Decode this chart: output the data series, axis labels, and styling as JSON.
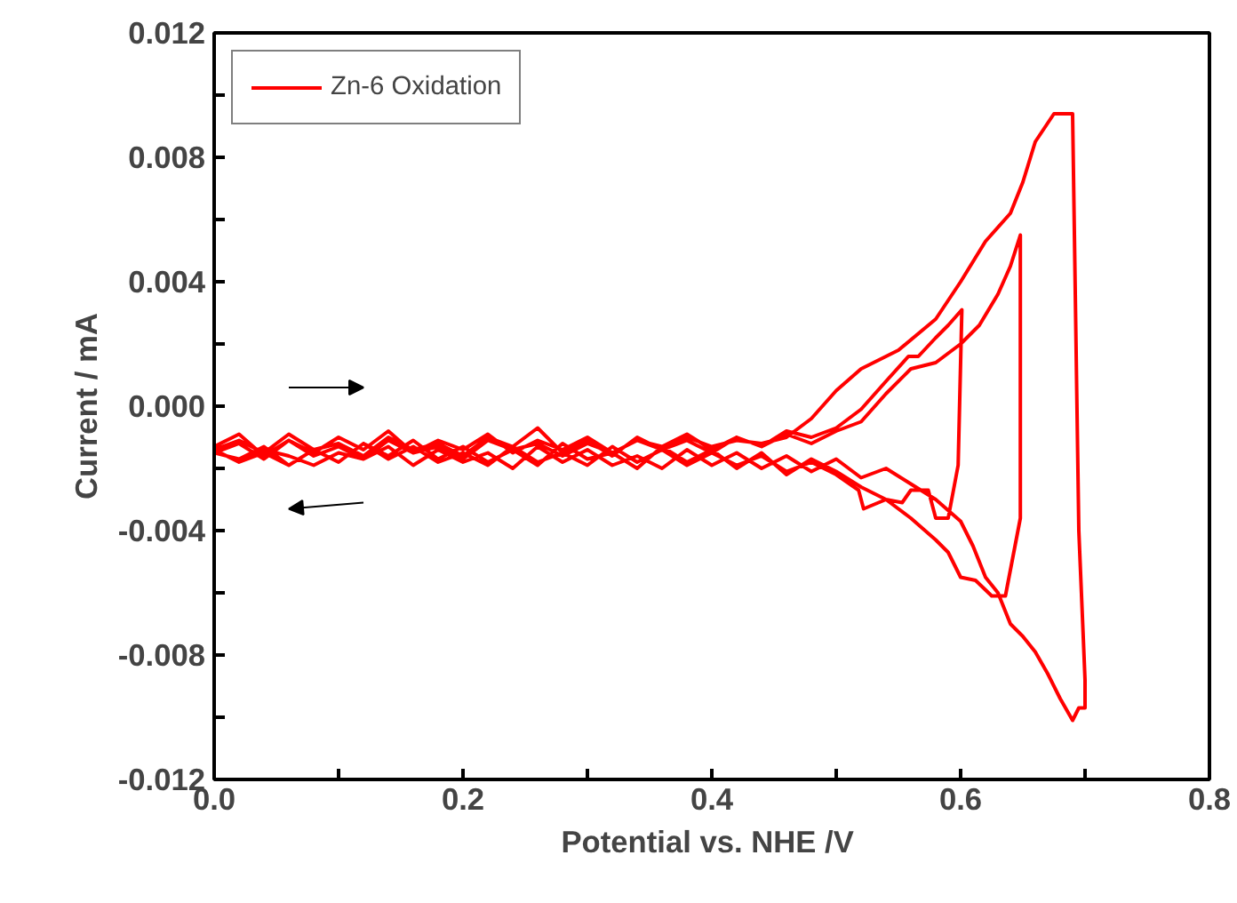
{
  "chart_data": {
    "type": "line",
    "xlabel": "Potential vs. NHE  /V",
    "ylabel": "Current / mA",
    "legend": "top left",
    "grid": false,
    "line_style": "solid",
    "xlim": [
      0,
      0.8
    ],
    "ylim": [
      -0.012,
      0.012
    ],
    "xticks": [
      {
        "value": 0,
        "label": "0.0"
      },
      {
        "value": 0.1,
        "label": null
      },
      0.2,
      {
        "value": 0.3,
        "label": null
      },
      0.4,
      {
        "value": 0.5,
        "label": null
      },
      0.6,
      {
        "value": 0.7,
        "label": null
      },
      0.8
    ],
    "yticks": [
      -0.012,
      {
        "value": -0.01,
        "label": null
      },
      -0.008,
      {
        "value": -0.006,
        "label": null
      },
      -0.004,
      {
        "value": -0.002,
        "label": null
      },
      {
        "value": 0,
        "label": "0.000"
      },
      {
        "value": 0.002,
        "label": null
      },
      0.004,
      {
        "value": 0.006,
        "label": null
      },
      0.008,
      {
        "value": 0.01,
        "label": null
      },
      0.012
    ],
    "series": [
      {
        "name": "Zn-6 Oxidation",
        "color": "#ff0000",
        "x": [
          0,
          0.02,
          0.04,
          0.06,
          0.08,
          0.1,
          0.12,
          0.14,
          0.16,
          0.18,
          0.2,
          0.22,
          0.24,
          0.26,
          0.28,
          0.3,
          0.32,
          0.34,
          0.36,
          0.38,
          0.4,
          0.42,
          0.44,
          0.46,
          0.48,
          0.5,
          0.52,
          0.54,
          0.558,
          0.566,
          0.58,
          0.59,
          0.601,
          0.598,
          0.59,
          0.58,
          0.574,
          0.56,
          0.553,
          0.54,
          0.522,
          0.518,
          0.5,
          0.48,
          0.46,
          0.44,
          0.42,
          0.4,
          0.38,
          0.36,
          0.34,
          0.32,
          0.3,
          0.28,
          0.26,
          0.24,
          0.22,
          0.2,
          0.18,
          0.16,
          0.14,
          0.12,
          0.1,
          0.08,
          0.06,
          0.04,
          0.02,
          0,
          0.02,
          0.04,
          0.06,
          0.08,
          0.1,
          0.12,
          0.14,
          0.16,
          0.18,
          0.2,
          0.22,
          0.24,
          0.26,
          0.28,
          0.3,
          0.32,
          0.34,
          0.36,
          0.38,
          0.4,
          0.42,
          0.44,
          0.46,
          0.48,
          0.5,
          0.52,
          0.54,
          0.56,
          0.58,
          0.6,
          0.615,
          0.63,
          0.64,
          0.648,
          0.648,
          0.636,
          0.625,
          0.612,
          0.6,
          0.59,
          0.58,
          0.56,
          0.54,
          0.52,
          0.5,
          0.48,
          0.46,
          0.44,
          0.42,
          0.4,
          0.38,
          0.36,
          0.34,
          0.32,
          0.3,
          0.28,
          0.26,
          0.24,
          0.22,
          0.2,
          0.18,
          0.16,
          0.14,
          0.12,
          0.1,
          0.08,
          0.06,
          0.04,
          0.02,
          0,
          0.02,
          0.04,
          0.06,
          0.08,
          0.1,
          0.12,
          0.14,
          0.16,
          0.18,
          0.2,
          0.22,
          0.24,
          0.26,
          0.28,
          0.3,
          0.32,
          0.34,
          0.36,
          0.38,
          0.4,
          0.42,
          0.44,
          0.46,
          0.48,
          0.5,
          0.52,
          0.55,
          0.58,
          0.6,
          0.62,
          0.64,
          0.65,
          0.66,
          0.675,
          0.69,
          0.695,
          0.7,
          0.7,
          0.695,
          0.69,
          0.68,
          0.67,
          0.66,
          0.65,
          0.64,
          0.63,
          0.62,
          0.61,
          0.6,
          0.58,
          0.56,
          0.54,
          0.52,
          0.5,
          0.48,
          0.46,
          0.44,
          0.42,
          0.4,
          0.38,
          0.36,
          0.34,
          0.32,
          0.3,
          0.28,
          0.26,
          0.24,
          0.22,
          0.2,
          0.18,
          0.16,
          0.14,
          0.12,
          0.1,
          0.08,
          0.06,
          0.04,
          0.02,
          0
        ],
        "values": [
          -0.0013,
          -0.0009,
          -0.0016,
          -0.0011,
          -0.0015,
          -0.001,
          -0.0014,
          -0.0008,
          -0.0015,
          -0.0011,
          -0.0014,
          -0.0009,
          -0.0015,
          -0.0011,
          -0.0014,
          -0.001,
          -0.0015,
          -0.0011,
          -0.0013,
          -0.0009,
          -0.0014,
          -0.001,
          -0.0013,
          -0.0008,
          -0.001,
          -0.0007,
          -0.0001,
          0.0008,
          0.0016,
          0.0016,
          0.0022,
          0.0026,
          0.0031,
          -0.0019,
          -0.0036,
          -0.0036,
          -0.0027,
          -0.0027,
          -0.0031,
          -0.003,
          -0.0033,
          -0.0027,
          -0.0022,
          -0.0018,
          -0.0021,
          -0.0016,
          -0.0019,
          -0.0015,
          -0.0019,
          -0.0014,
          -0.0018,
          -0.0013,
          -0.0019,
          -0.0015,
          -0.0018,
          -0.0013,
          -0.0019,
          -0.0015,
          -0.0018,
          -0.0013,
          -0.0017,
          -0.0012,
          -0.0018,
          -0.0014,
          -0.0019,
          -0.0015,
          -0.0018,
          -0.0014,
          -0.0011,
          -0.0015,
          -0.0009,
          -0.0014,
          -0.0012,
          -0.0016,
          -0.001,
          -0.0014,
          -0.0012,
          -0.0016,
          -0.001,
          -0.0013,
          -0.0007,
          -0.0015,
          -0.0011,
          -0.0016,
          -0.001,
          -0.0014,
          -0.0011,
          -0.0015,
          -0.001,
          -0.0013,
          -0.0009,
          -0.0012,
          -0.0008,
          -0.0005,
          0.0004,
          0.0012,
          0.0014,
          0.002,
          0.0026,
          0.0036,
          0.0045,
          0.0055,
          -0.0036,
          -0.0061,
          -0.0061,
          -0.0056,
          -0.0055,
          -0.0047,
          -0.0043,
          -0.0036,
          -0.003,
          -0.0026,
          -0.0021,
          -0.0017,
          -0.0022,
          -0.0015,
          -0.002,
          -0.0014,
          -0.0018,
          -0.0013,
          -0.002,
          -0.0015,
          -0.0017,
          -0.0012,
          -0.0019,
          -0.0014,
          -0.0018,
          -0.0013,
          -0.0017,
          -0.0011,
          -0.0016,
          -0.0012,
          -0.0018,
          -0.0014,
          -0.0019,
          -0.0013,
          -0.0017,
          -0.0015,
          -0.0012,
          -0.0017,
          -0.0011,
          -0.0016,
          -0.0013,
          -0.0017,
          -0.0011,
          -0.0015,
          -0.0013,
          -0.0017,
          -0.0011,
          -0.0014,
          -0.0012,
          -0.0016,
          -0.0012,
          -0.0015,
          -0.0011,
          -0.0014,
          -0.001,
          -0.0013,
          -0.0011,
          -0.0012,
          -0.001,
          -0.0004,
          0.0005,
          0.0012,
          0.0018,
          0.0028,
          0.004,
          0.0053,
          0.0062,
          0.0072,
          0.0085,
          0.0094,
          0.0094,
          -0.004,
          -0.0088,
          -0.0097,
          -0.0097,
          -0.0101,
          -0.0094,
          -0.0086,
          -0.0079,
          -0.0074,
          -0.007,
          -0.006,
          -0.0055,
          -0.0045,
          -0.0037,
          -0.003,
          -0.0025,
          -0.002,
          -0.0023,
          -0.0017,
          -0.0021,
          -0.0016,
          -0.002,
          -0.0015,
          -0.0019,
          -0.0014,
          -0.002,
          -0.0016,
          -0.0019,
          -0.0014,
          -0.0018,
          -0.0013,
          -0.002,
          -0.0015,
          -0.0018,
          -0.0014,
          -0.0019,
          -0.0013,
          -0.0017,
          -0.0015,
          -0.0019,
          -0.0016,
          -0.0014,
          -0.0017,
          -0.0015
        ]
      }
    ]
  }
}
